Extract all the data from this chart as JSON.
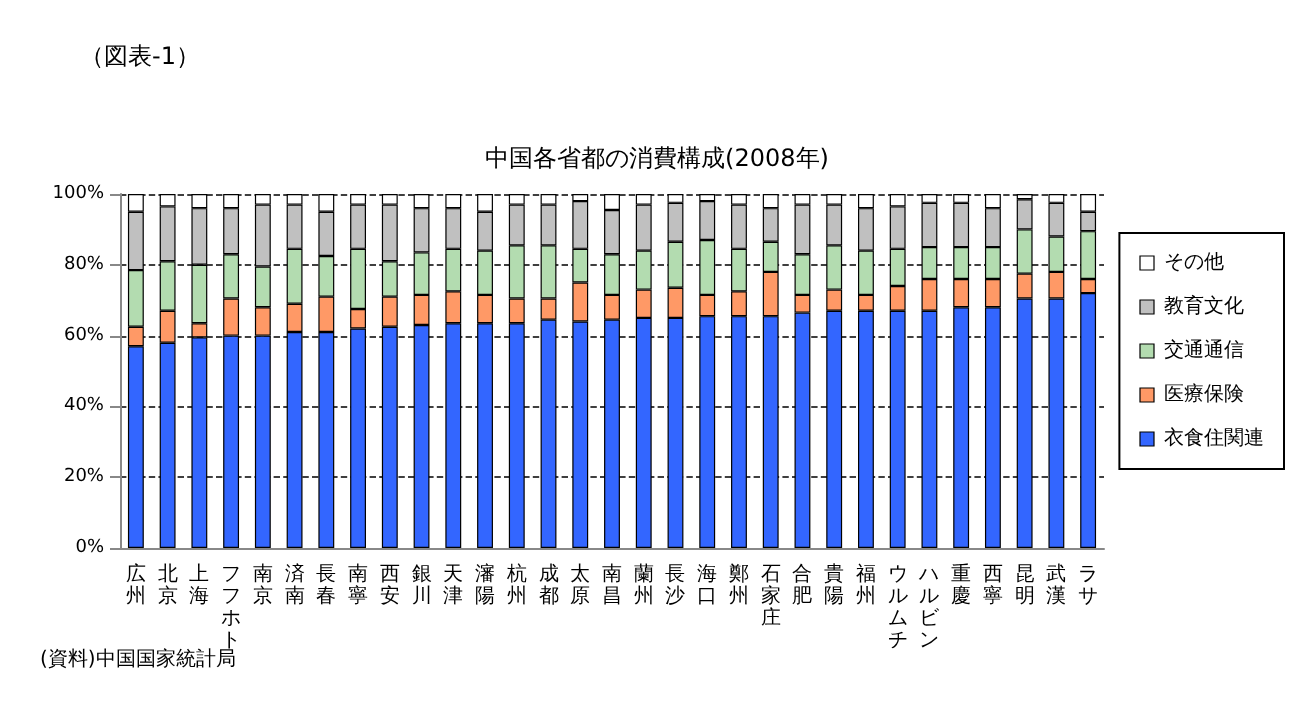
{
  "chart_data": {
    "type": "bar",
    "stacked": true,
    "title": "中国各省都の消費構成(2008年)",
    "annotations": [
      "（図表-1）",
      "(資料)中国国家統計局"
    ],
    "categories": [
      "広州",
      "北京",
      "上海",
      "フフホト",
      "南京",
      "済南",
      "長春",
      "南寧",
      "西安",
      "銀川",
      "天津",
      "瀋陽",
      "杭州",
      "成都",
      "太原",
      "南昌",
      "蘭州",
      "長沙",
      "海口",
      "鄭州",
      "石家庄",
      "合肥",
      "貴陽",
      "福州",
      "ウルムチ",
      "ハルビン",
      "重慶",
      "西寧",
      "昆明",
      "武漢",
      "ラサ"
    ],
    "series": [
      {
        "name": "衣食住関連",
        "color": "#3366ff",
        "values": [
          57,
          58,
          59.5,
          60,
          60,
          61,
          61,
          62,
          62.5,
          63,
          63.5,
          63.5,
          63.5,
          64.5,
          64,
          64.5,
          65,
          65,
          65.5,
          65.5,
          65.5,
          66.5,
          67,
          67,
          67,
          67,
          68,
          68,
          70.5,
          70.5,
          72
        ]
      },
      {
        "name": "医療保険",
        "color": "#ff9966",
        "values": [
          5.5,
          9,
          4,
          10.5,
          8,
          8,
          10,
          5.5,
          8.5,
          8.5,
          9,
          8,
          7,
          6,
          11,
          7,
          8,
          8.5,
          6,
          7,
          12.5,
          5,
          6,
          4.5,
          7,
          9,
          8,
          8,
          7,
          7.5,
          4
        ]
      },
      {
        "name": "交通通信",
        "color": "#b3dcb0",
        "values": [
          16,
          14,
          16.5,
          12.5,
          11.5,
          15.5,
          11.5,
          17,
          10,
          12,
          12,
          12.5,
          15,
          15,
          9.5,
          11.5,
          11,
          13,
          15.5,
          12,
          8.5,
          11.5,
          12.5,
          12.5,
          10.5,
          9,
          9,
          9,
          12.5,
          10,
          13.5
        ]
      },
      {
        "name": "教育文化",
        "color": "#c0c0c0",
        "values": [
          16.5,
          15.5,
          16,
          13,
          17.5,
          12.5,
          12.5,
          12.5,
          16,
          12.5,
          11.5,
          11,
          11.5,
          11.5,
          13.5,
          12.5,
          13,
          11,
          11,
          12.5,
          9.5,
          14,
          11.5,
          12,
          12,
          12.5,
          12.5,
          11,
          8.5,
          9.5,
          5.5
        ]
      },
      {
        "name": "その他",
        "color": "#ffffff",
        "values": [
          5,
          3.5,
          4,
          4,
          3,
          3,
          5,
          3,
          3,
          4,
          4,
          5,
          3,
          3,
          2,
          4.5,
          3,
          2.5,
          2,
          3,
          4,
          3,
          3,
          4,
          3.5,
          2.5,
          2.5,
          4,
          1.5,
          2.5,
          5
        ]
      }
    ],
    "ylim": [
      0,
      100
    ],
    "yticks": [
      {
        "value": 0,
        "label": "0%"
      },
      {
        "value": 20,
        "label": "20%"
      },
      {
        "value": 40,
        "label": "40%"
      },
      {
        "value": 60,
        "label": "60%"
      },
      {
        "value": 80,
        "label": "80%"
      },
      {
        "value": 100,
        "label": "100%"
      }
    ],
    "grid": "y",
    "legend": "right"
  }
}
